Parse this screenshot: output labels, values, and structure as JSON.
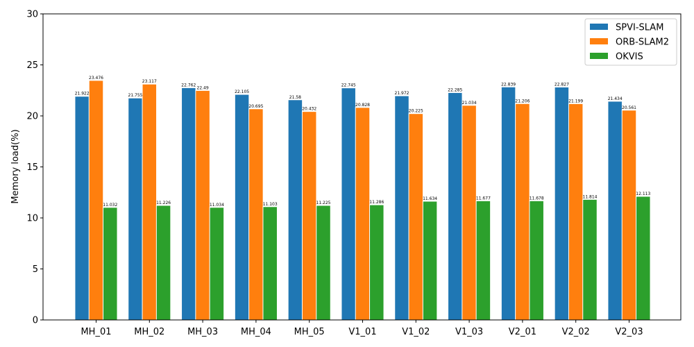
{
  "chart_data": {
    "type": "bar",
    "title": "",
    "xlabel": "",
    "ylabel": "Memory load(%)",
    "ylim": [
      0,
      30
    ],
    "yticks": [
      0,
      5,
      10,
      15,
      20,
      25,
      30
    ],
    "grid": false,
    "legend_position": "top-right",
    "categories": [
      "MH_01",
      "MH_02",
      "MH_03",
      "MH_04",
      "MH_05",
      "V1_01",
      "V1_02",
      "V1_03",
      "V2_01",
      "V2_02",
      "V2_03"
    ],
    "series": [
      {
        "name": "SPVI-SLAM",
        "color": "#1f77b4",
        "values": [
          21.922,
          21.755,
          22.762,
          22.105,
          21.58,
          22.745,
          21.972,
          22.285,
          22.839,
          22.827,
          21.434
        ],
        "labels": [
          "21.922",
          "21.755",
          "22.762",
          "22.105",
          "21.58",
          "22.745",
          "21.972",
          "22.285",
          "22.839",
          "22.827",
          "21.434"
        ]
      },
      {
        "name": "ORB-SLAM2",
        "color": "#ff7f0e",
        "values": [
          23.476,
          23.117,
          22.49,
          20.695,
          20.432,
          20.828,
          20.225,
          21.034,
          21.206,
          21.199,
          20.561
        ],
        "labels": [
          "23.476",
          "23.117",
          "22.49",
          "20.695",
          "20.432",
          "20.828",
          "20.225",
          "21.034",
          "21.206",
          "21.199",
          "20.561"
        ]
      },
      {
        "name": "OKVIS",
        "color": "#2ca02c",
        "values": [
          11.032,
          11.226,
          11.034,
          11.103,
          11.225,
          11.286,
          11.634,
          11.677,
          11.678,
          11.814,
          12.113
        ],
        "labels": [
          "11.032",
          "11.226",
          "11.034",
          "11.103",
          "11.225",
          "11.286",
          "11.634",
          "11.677",
          "11.678",
          "11.814",
          "12.113"
        ]
      }
    ]
  }
}
